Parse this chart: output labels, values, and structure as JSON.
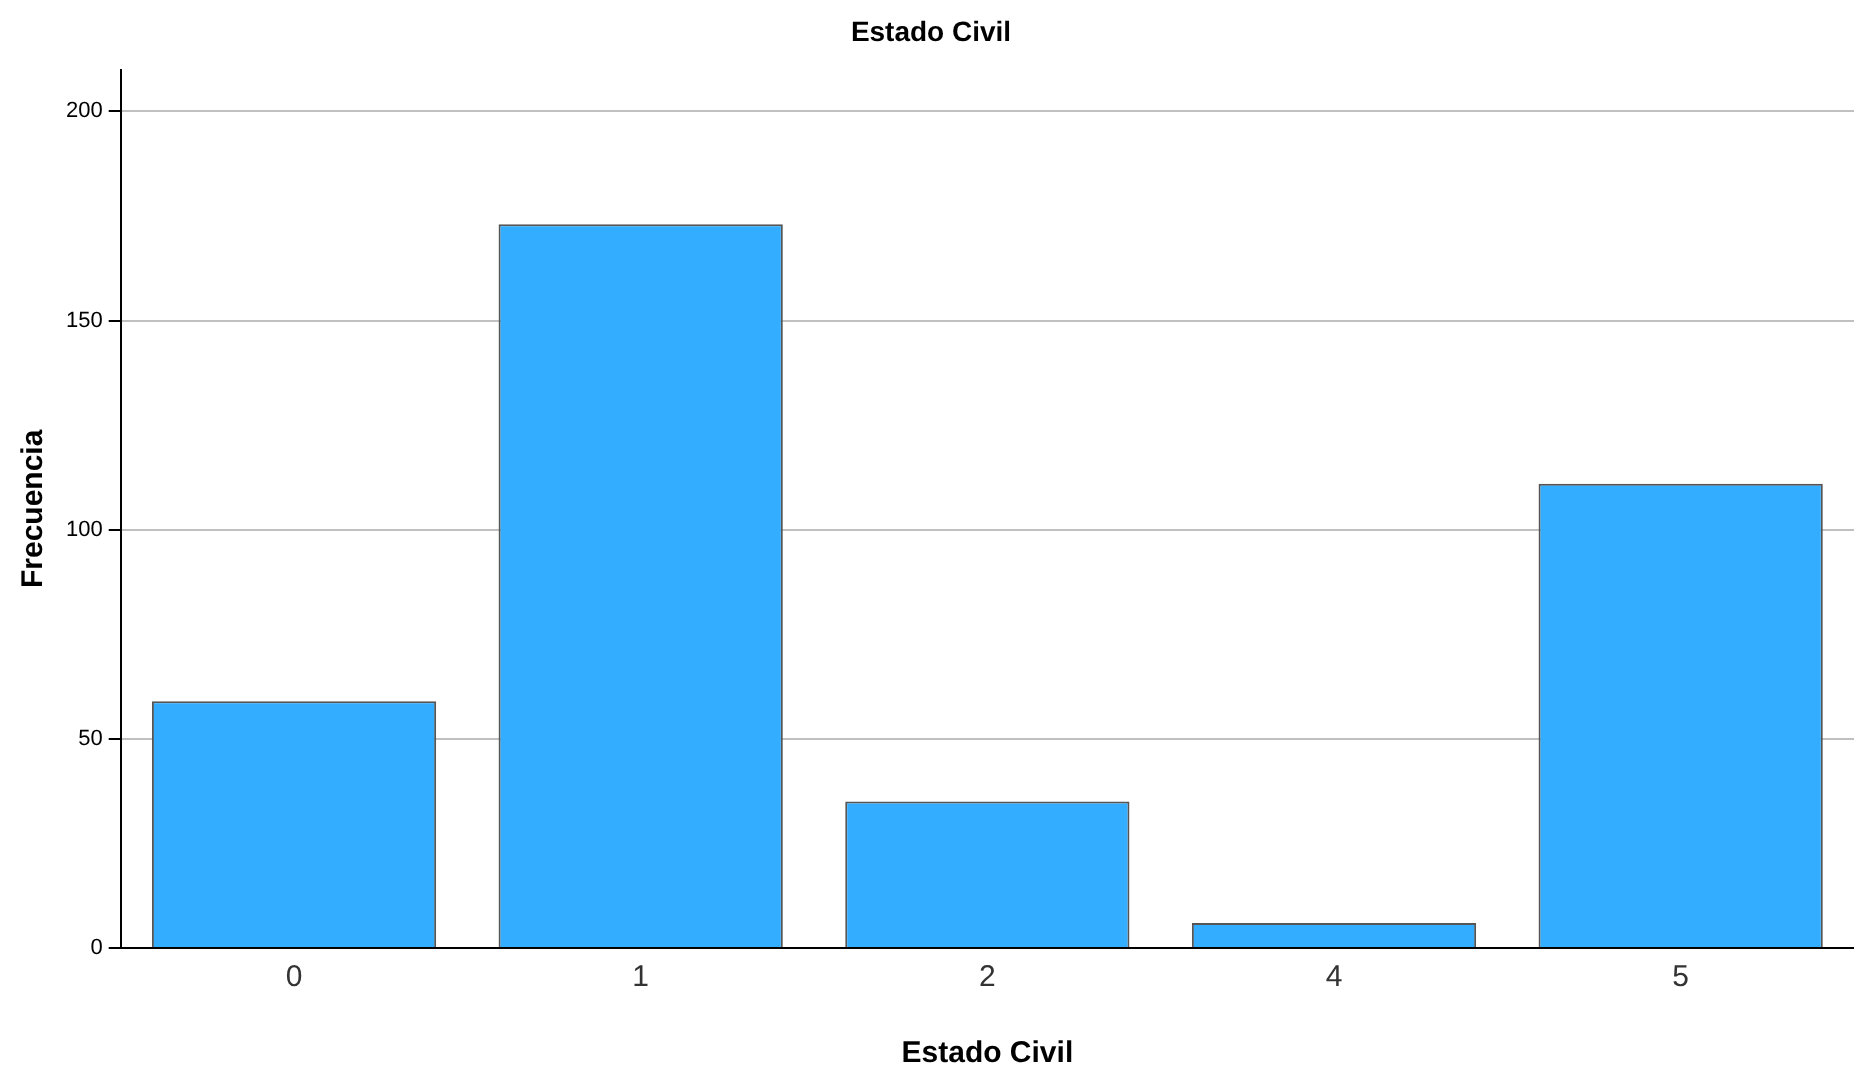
{
  "chart_data": {
    "type": "bar",
    "title": "Estado Civil",
    "xlabel": "Estado Civil",
    "ylabel": "Frecuencia",
    "categories": [
      "0",
      "1",
      "2",
      "4",
      "5"
    ],
    "values": [
      59,
      173,
      35,
      6,
      111
    ],
    "color": "#33adff",
    "ylim": [
      0,
      210
    ],
    "yticks": [
      0,
      50,
      100,
      150,
      200
    ],
    "grid": "y",
    "legend": false
  }
}
